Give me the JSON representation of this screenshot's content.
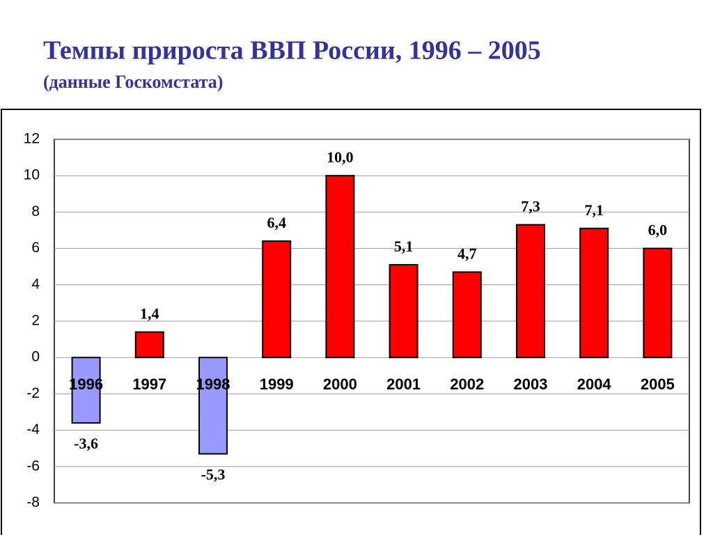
{
  "chart_data": {
    "type": "bar",
    "title": "Темпы прироста ВВП России, 1996 – 2005",
    "subtitle": "(данные Госкомстата)",
    "categories": [
      "1996",
      "1997",
      "1998",
      "1999",
      "2000",
      "2001",
      "2002",
      "2003",
      "2004",
      "2005"
    ],
    "values": [
      -3.6,
      1.4,
      -5.3,
      6.4,
      10.0,
      5.1,
      4.7,
      7.3,
      7.1,
      6.0
    ],
    "value_labels": [
      "-3,6",
      "1,4",
      "-5,3",
      "6,4",
      "10,0",
      "5,1",
      "4,7",
      "7,3",
      "7,1",
      "6,0"
    ],
    "colors": [
      "#9999ff",
      "#ff0000",
      "#9999ff",
      "#ff0000",
      "#ff0000",
      "#ff0000",
      "#ff0000",
      "#ff0000",
      "#ff0000",
      "#ff0000"
    ],
    "ylim": [
      -8,
      12
    ],
    "yticks": [
      -8,
      -6,
      -4,
      -2,
      0,
      2,
      4,
      6,
      8,
      10,
      12
    ],
    "grid": true
  }
}
